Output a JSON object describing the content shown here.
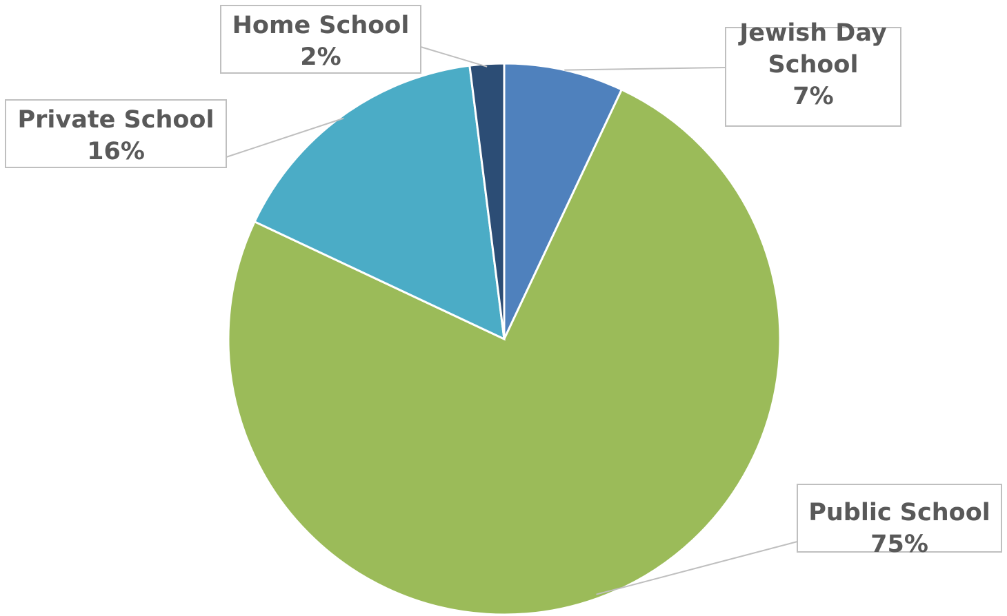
{
  "chart_data": {
    "type": "pie",
    "categories": [
      "Jewish Day School",
      "Public School",
      "Private School",
      "Home School"
    ],
    "values": [
      7,
      75,
      16,
      2
    ],
    "value_labels": [
      "7%",
      "75%",
      "16%",
      "2%"
    ],
    "label_lines": [
      [
        "Jewish Day",
        "School"
      ],
      [
        "Public School"
      ],
      [
        "Private School"
      ],
      [
        "Home School"
      ]
    ],
    "colors": [
      "#4f81bd",
      "#9bbb59",
      "#4bacc6",
      "#2c4d75"
    ],
    "start": "12 o'clock",
    "direction": "clockwise",
    "legend": "none",
    "data_labels": "outside with leader lines"
  }
}
